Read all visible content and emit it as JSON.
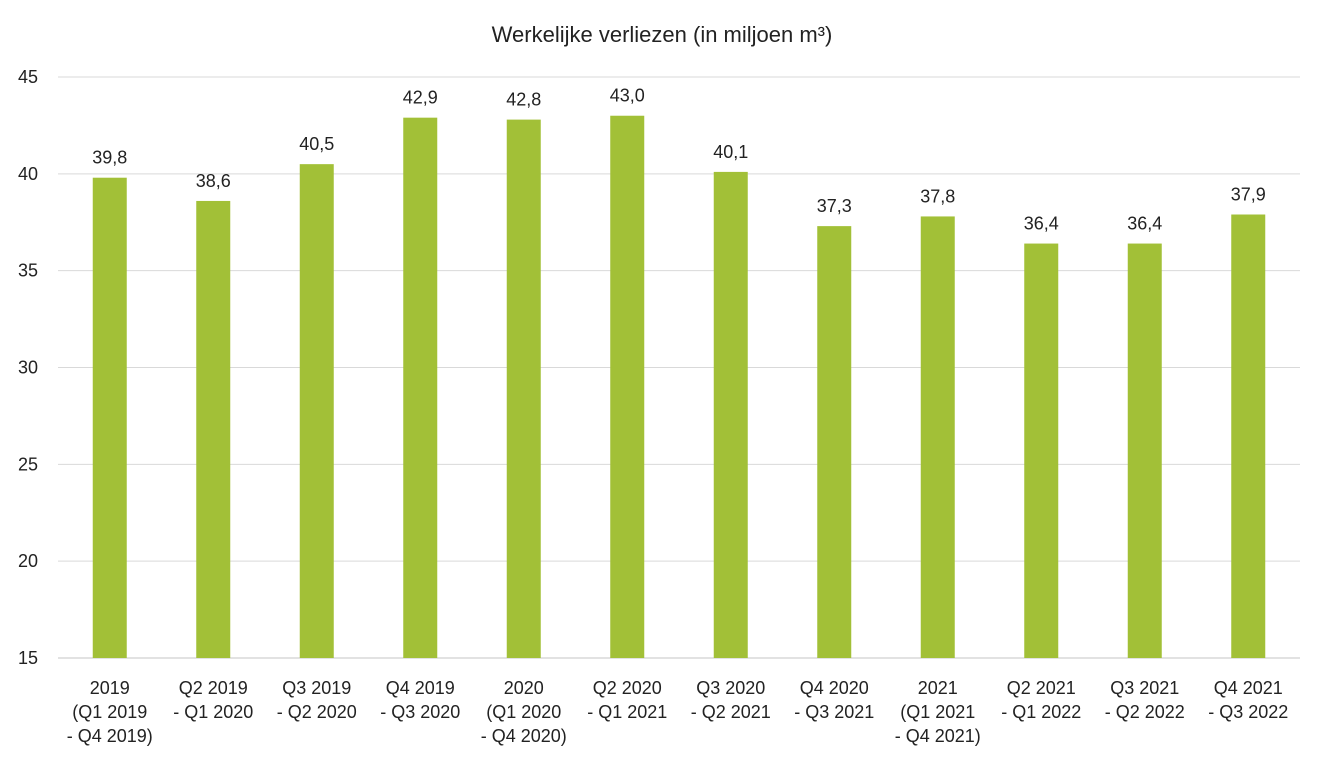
{
  "chart_data": {
    "type": "bar",
    "title": "Werkelijke verliezen (in miljoen m³)",
    "xlabel": "",
    "ylabel": "",
    "ylim": [
      15,
      45
    ],
    "yticks": [
      "15",
      "20",
      "25",
      "30",
      "35",
      "40",
      "45"
    ],
    "grid": true,
    "legend": "none",
    "bar_color": "#a2c037",
    "categories": [
      [
        "2019",
        "(Q1 2019",
        "- Q4 2019)"
      ],
      [
        "Q2 2019",
        "- Q1 2020"
      ],
      [
        "Q3 2019",
        "- Q2 2020"
      ],
      [
        "Q4 2019",
        "- Q3 2020"
      ],
      [
        "2020",
        "(Q1 2020",
        "- Q4 2020)"
      ],
      [
        "Q2 2020",
        "- Q1 2021"
      ],
      [
        "Q3 2020",
        "- Q2 2021"
      ],
      [
        "Q4 2020",
        "- Q3 2021"
      ],
      [
        "2021",
        "(Q1 2021",
        "- Q4 2021)"
      ],
      [
        "Q2 2021",
        "- Q1 2022"
      ],
      [
        "Q3 2021",
        "- Q2 2022"
      ],
      [
        "Q4 2021",
        "- Q3 2022"
      ]
    ],
    "values": [
      39.8,
      38.6,
      40.5,
      42.9,
      42.8,
      43.0,
      40.1,
      37.3,
      37.8,
      36.4,
      36.4,
      37.9
    ],
    "data_labels": [
      "39,8",
      "38,6",
      "40,5",
      "42,9",
      "42,8",
      "43,0",
      "40,1",
      "37,3",
      "37,8",
      "36,4",
      "36,4",
      "37,9"
    ]
  }
}
